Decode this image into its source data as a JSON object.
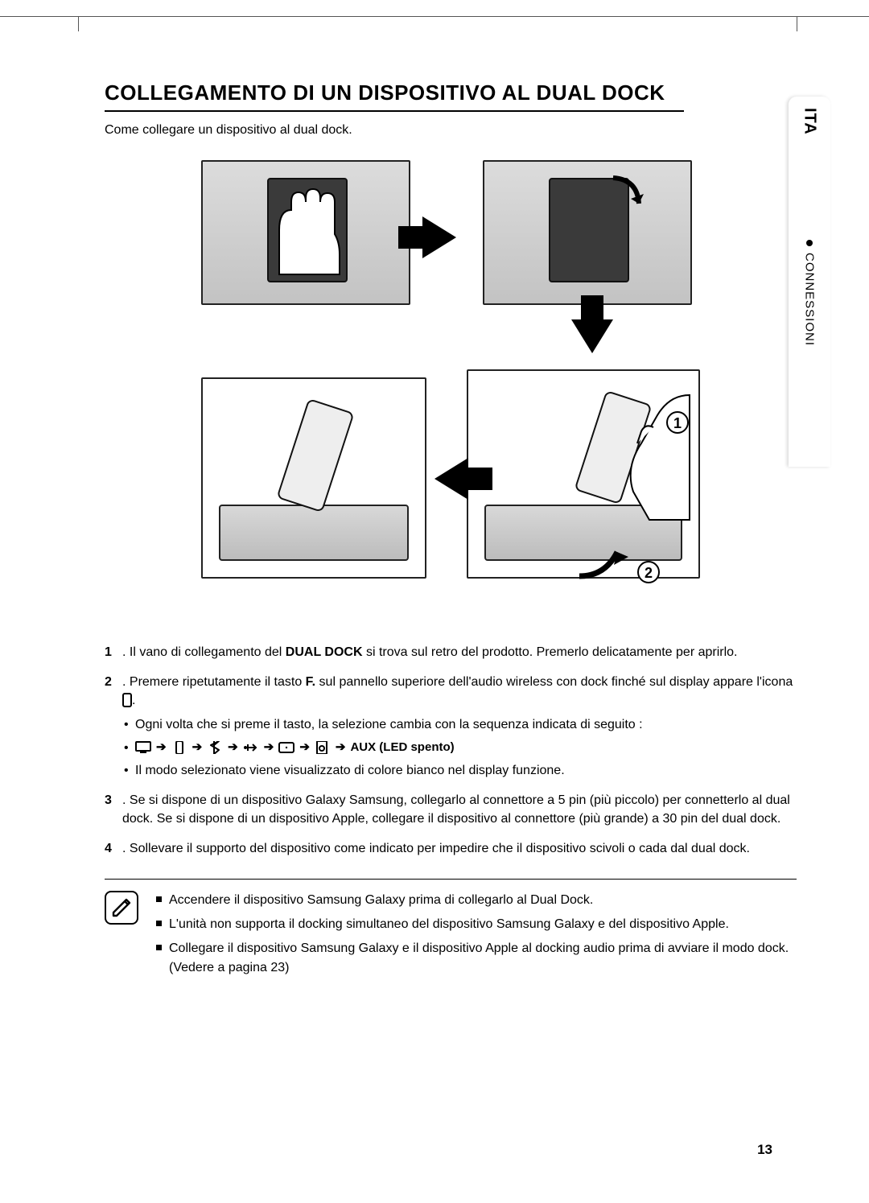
{
  "sideTab": {
    "lang": "ITA",
    "section": "CONNESSIONI"
  },
  "title": "COLLEGAMENTO DI UN DISPOSITIVO AL DUAL DOCK",
  "lead": "Come collegare un dispositivo al dual dock.",
  "illus": {
    "panel_bg_gradient": [
      "#dcdcdc",
      "#c3c3c3"
    ],
    "arrow_color": "#000000",
    "callouts": {
      "one": "1",
      "two": "2"
    }
  },
  "steps": [
    {
      "num": "1",
      "html": "Il vano di collegamento del <b>DUAL DOCK</b> si trova sul retro del prodotto. Premerlo delicatamente per aprirlo."
    },
    {
      "num": "2",
      "html": "Premere ripetutamente il tasto <b>F.</b> sul pannello superiore dell'audio wireless con dock finché sul display appare l'icona <span class=\"phone-ico\"></span>.",
      "sub": [
        "Ogni volta che si preme il tasto, la selezione cambia con la sequenza indicata di seguito :",
        "__SEQ__",
        "Il modo selezionato viene visualizzato di colore bianco nel display funzione."
      ]
    },
    {
      "num": "3",
      "html": "Se si dispone di un dispositivo Galaxy Samsung, collegarlo al connettore a 5 pin (più piccolo) per connetterlo al dual dock. Se si dispone di un dispositivo Apple, collegare il dispositivo al connettore (più grande) a 30 pin del dual dock."
    },
    {
      "num": "4",
      "html": "Sollevare il supporto del dispositivo come indicato per impedire che il dispositivo scivoli o cada dal dual dock."
    }
  ],
  "sequence": {
    "tail": "AUX (LED spento)",
    "arrow": "➔"
  },
  "notes": [
    "Accendere il dispositivo Samsung Galaxy prima di collegarlo al Dual Dock.",
    "L'unità non supporta il docking simultaneo del dispositivo Samsung Galaxy e del dispositivo Apple.",
    "Collegare il dispositivo Samsung Galaxy e il dispositivo Apple al docking audio prima di avviare il modo dock.(Vedere a pagina 23)"
  ],
  "pageNumber": "13",
  "colors": {
    "text": "#000000",
    "rule": "#555555",
    "panel_border": "#222222"
  },
  "typography": {
    "title_pt": 20,
    "body_pt": 12,
    "family": "Arial"
  }
}
